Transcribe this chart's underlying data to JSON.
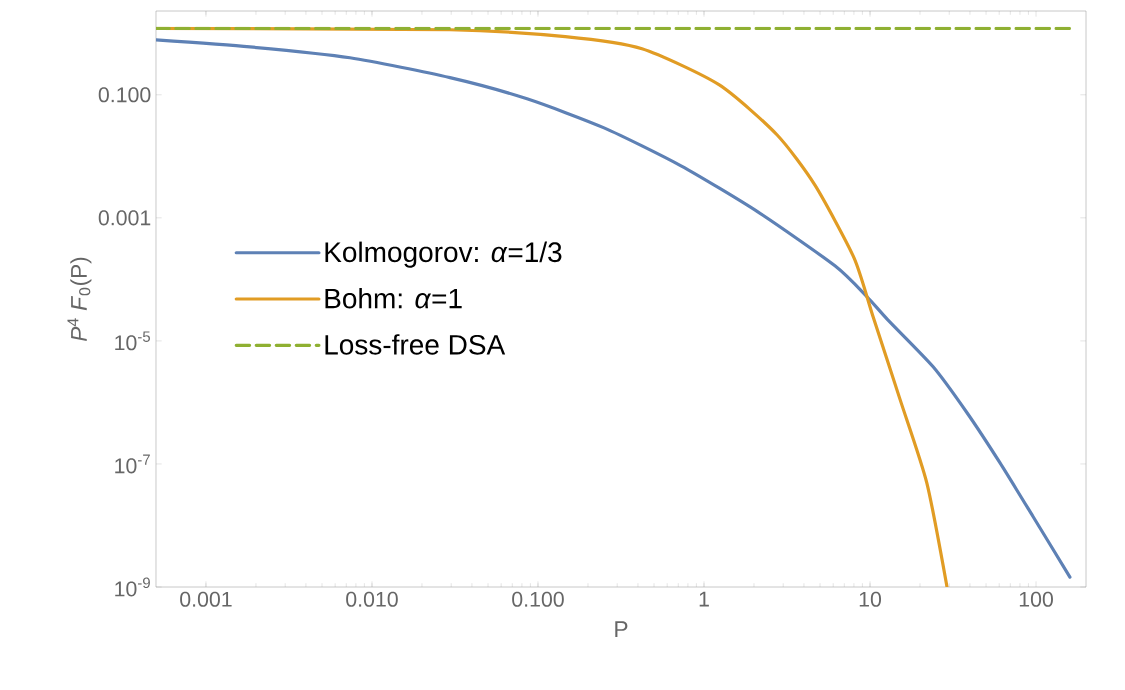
{
  "chart_data": {
    "type": "line",
    "xlabel": "P",
    "ylabel": "*P*$^{4}$ *F*$_{0}$(P)",
    "log": "xy",
    "grid": false,
    "legend": "left",
    "xlim": [
      0.0005,
      200
    ],
    "ylim": [
      1e-09,
      2.3
    ],
    "xticks": [
      {
        "value": 0.001,
        "label": "0.001"
      },
      {
        "value": 0.01,
        "label": "0.010"
      },
      {
        "value": 0.1,
        "label": "0.100"
      },
      1,
      10,
      100
    ],
    "yticks": [
      {
        "value": 1e-09,
        "label": "10$^{-9}$"
      },
      {
        "value": 1e-07,
        "label": "10$^{-7}$"
      },
      {
        "value": 1e-05,
        "label": "10$^{-5}$"
      },
      {
        "value": 0.001,
        "label": "0.001"
      },
      {
        "value": 0.1,
        "label": "0.100"
      }
    ],
    "series": [
      {
        "name": "Kolmogorov: *α*=1/3",
        "color": "#5e81b5",
        "line_style": "solid",
        "x": [
          0.0005,
          0.00184,
          0.00737,
          0.0295,
          0.0859,
          0.25,
          0.727,
          2.11,
          6.15,
          9.6,
          12.8,
          24,
          38.4,
          60.7,
          95.9,
          160
        ],
        "values": [
          0.78,
          0.6,
          0.4,
          0.19,
          0.086,
          0.029,
          0.007,
          0.00125,
          0.000166,
          5.2e-05,
          2.2e-05,
          3.8e-06,
          6.8e-07,
          1.04e-07,
          1.4e-08,
          1.45e-09
        ]
      },
      {
        "name": "Bohm: *α*=1",
        "color": "#e19c24",
        "line_style": "solid",
        "x": [
          0.0005,
          0.0295,
          0.146,
          0.423,
          1.23,
          2.75,
          4.66,
          8.01,
          10.4,
          15.2,
          22,
          29.1
        ],
        "values": [
          1.2,
          1.14,
          0.88,
          0.56,
          0.146,
          0.0224,
          0.0034,
          0.000224,
          2.55e-05,
          1.1e-06,
          4.9e-08,
          1e-09
        ]
      },
      {
        "name": "Loss-free DSA",
        "color": "#8fb032",
        "line_style": "dashed",
        "x": [
          0.0005,
          160
        ],
        "values": [
          1.2,
          1.2
        ]
      }
    ]
  }
}
